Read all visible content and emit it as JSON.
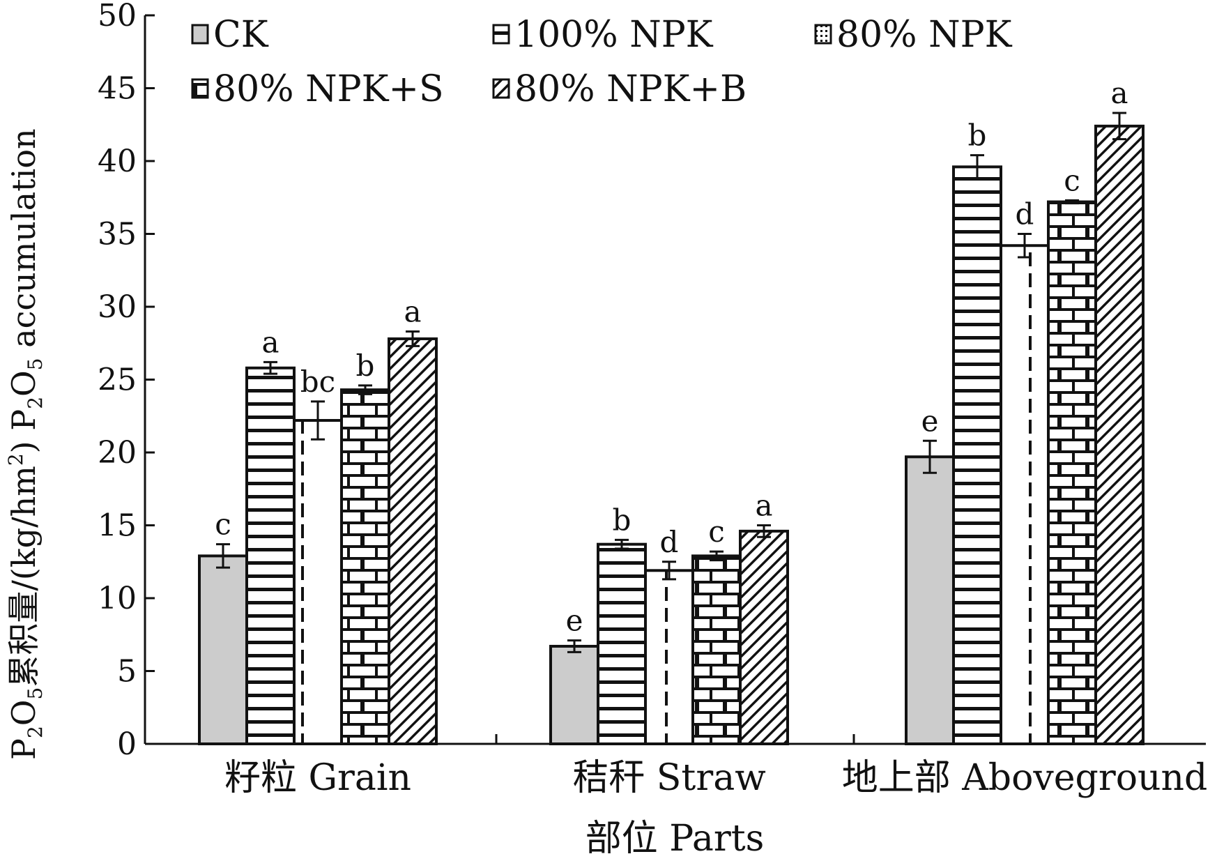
{
  "chart_data": {
    "type": "bar",
    "xlabel": "部位 Parts",
    "ylabel_parts": [
      "P",
      "2",
      "O",
      "5",
      "累积量/(kg/hm",
      "2",
      ") P",
      "2",
      "O",
      "5",
      " accumulation"
    ],
    "ylim": [
      0,
      50
    ],
    "yticks": [
      0,
      5,
      10,
      15,
      20,
      25,
      30,
      35,
      40,
      45,
      50
    ],
    "categories": [
      "籽粒 Grain",
      "秸秆 Straw",
      "地上部 Aboveground"
    ],
    "legend_position": "top",
    "grid": false,
    "series": [
      {
        "name": "CK",
        "pattern": "solid-gray",
        "values": [
          12.9,
          6.7,
          19.7
        ],
        "errors": [
          0.8,
          0.4,
          1.1
        ],
        "letters": [
          "c",
          "e",
          "e"
        ]
      },
      {
        "name": "100% NPK",
        "pattern": "horizontal-lines",
        "values": [
          25.8,
          13.7,
          39.6
        ],
        "errors": [
          0.4,
          0.3,
          0.8
        ],
        "letters": [
          "a",
          "b",
          "b"
        ]
      },
      {
        "name": "80% NPK",
        "pattern": "dashed-vertical",
        "values": [
          22.2,
          11.9,
          34.2
        ],
        "errors": [
          1.3,
          0.6,
          0.8
        ],
        "letters": [
          "bc",
          "d",
          "d"
        ]
      },
      {
        "name": "80% NPK+S",
        "pattern": "brick",
        "values": [
          24.3,
          12.9,
          37.2
        ],
        "errors": [
          0.3,
          0.3,
          0.1
        ],
        "letters": [
          "b",
          "c",
          "c"
        ]
      },
      {
        "name": "80% NPK+B",
        "pattern": "diagonal-lines",
        "values": [
          27.8,
          14.6,
          42.4
        ],
        "errors": [
          0.5,
          0.4,
          0.9
        ],
        "letters": [
          "a",
          "a",
          "a"
        ]
      }
    ],
    "colors": {
      "ck_fill": "#cccccc",
      "stroke": "#111111",
      "background": "#ffffff"
    }
  }
}
